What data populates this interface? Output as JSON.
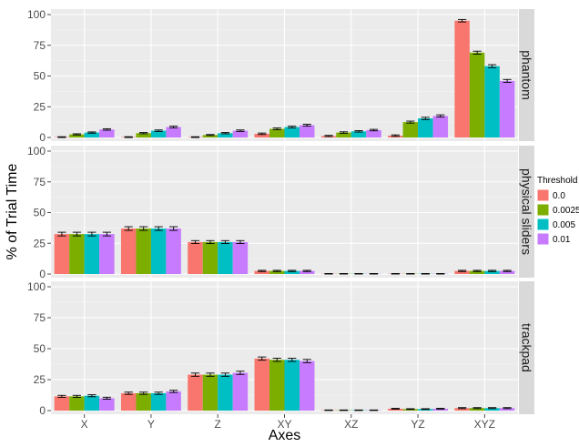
{
  "chart_data": {
    "type": "bar",
    "xlabel": "Axes",
    "ylabel": "% of Trial Time",
    "categories": [
      "X",
      "Y",
      "Z",
      "XY",
      "XZ",
      "YZ",
      "XYZ"
    ],
    "ylim": [
      0,
      100
    ],
    "yticks": [
      0,
      25,
      50,
      75,
      100
    ],
    "legend": {
      "title": "Threshold",
      "position": "right",
      "entries": [
        {
          "label": "0.0",
          "color": "#F8766D"
        },
        {
          "label": "0.0025",
          "color": "#7CAE00"
        },
        {
          "label": "0.005",
          "color": "#00BFC4"
        },
        {
          "label": "0.01",
          "color": "#C77CFF"
        }
      ]
    },
    "panels": [
      {
        "name": "phantom",
        "series": [
          {
            "name": "0.0",
            "values": [
              0.3,
              0.3,
              0.3,
              3,
              1.2,
              1.5,
              95
            ],
            "errors": [
              0.3,
              0.3,
              0.3,
              0.6,
              0.5,
              0.6,
              1.0
            ]
          },
          {
            "name": "0.0025",
            "values": [
              2.5,
              3.5,
              2,
              7,
              4,
              12.5,
              69
            ],
            "errors": [
              0.5,
              0.5,
              0.4,
              0.7,
              0.6,
              0.8,
              1.2
            ]
          },
          {
            "name": "0.005",
            "values": [
              4,
              5.5,
              3.5,
              8.5,
              5,
              15.5,
              58
            ],
            "errors": [
              0.5,
              0.6,
              0.5,
              0.7,
              0.6,
              0.9,
              1.2
            ]
          },
          {
            "name": "0.01",
            "values": [
              6.5,
              8.5,
              5.5,
              10,
              6,
              17.5,
              46
            ],
            "errors": [
              0.6,
              0.7,
              0.6,
              0.8,
              0.6,
              0.9,
              1.2
            ]
          }
        ]
      },
      {
        "name": "physical sliders",
        "series": [
          {
            "name": "0.0",
            "values": [
              32.5,
              37,
              26,
              2.5,
              0.2,
              0.2,
              2.5
            ],
            "errors": [
              1.5,
              1.5,
              1.2,
              0.5,
              0.2,
              0.2,
              0.5
            ]
          },
          {
            "name": "0.0025",
            "values": [
              32.5,
              37,
              26,
              2.5,
              0.2,
              0.2,
              2.5
            ],
            "errors": [
              1.5,
              1.5,
              1.2,
              0.5,
              0.2,
              0.2,
              0.5
            ]
          },
          {
            "name": "0.005",
            "values": [
              32.5,
              37,
              26,
              2.5,
              0.2,
              0.2,
              2.5
            ],
            "errors": [
              1.5,
              1.5,
              1.2,
              0.5,
              0.2,
              0.2,
              0.5
            ]
          },
          {
            "name": "0.01",
            "values": [
              32.5,
              37,
              26,
              2.5,
              0.2,
              0.2,
              2.5
            ],
            "errors": [
              1.5,
              1.5,
              1.2,
              0.5,
              0.2,
              0.2,
              0.5
            ]
          }
        ]
      },
      {
        "name": "trackpad",
        "series": [
          {
            "name": "0.0",
            "values": [
              11.5,
              14,
              29,
              42,
              0.3,
              1.5,
              2
            ],
            "errors": [
              0.8,
              0.9,
              1.3,
              1.3,
              0.2,
              0.3,
              0.4
            ]
          },
          {
            "name": "0.0025",
            "values": [
              11.5,
              14,
              29,
              41,
              0.3,
              1.2,
              2
            ],
            "errors": [
              0.8,
              0.9,
              1.3,
              1.3,
              0.2,
              0.3,
              0.4
            ]
          },
          {
            "name": "0.005",
            "values": [
              12,
              14,
              29,
              41,
              0.3,
              1.2,
              2
            ],
            "errors": [
              0.8,
              0.9,
              1.3,
              1.3,
              0.2,
              0.3,
              0.4
            ]
          },
          {
            "name": "0.01",
            "values": [
              10,
              15.5,
              30.5,
              40,
              0.3,
              1.5,
              2
            ],
            "errors": [
              0.8,
              0.9,
              1.3,
              1.3,
              0.2,
              0.3,
              0.4
            ]
          }
        ]
      }
    ]
  }
}
